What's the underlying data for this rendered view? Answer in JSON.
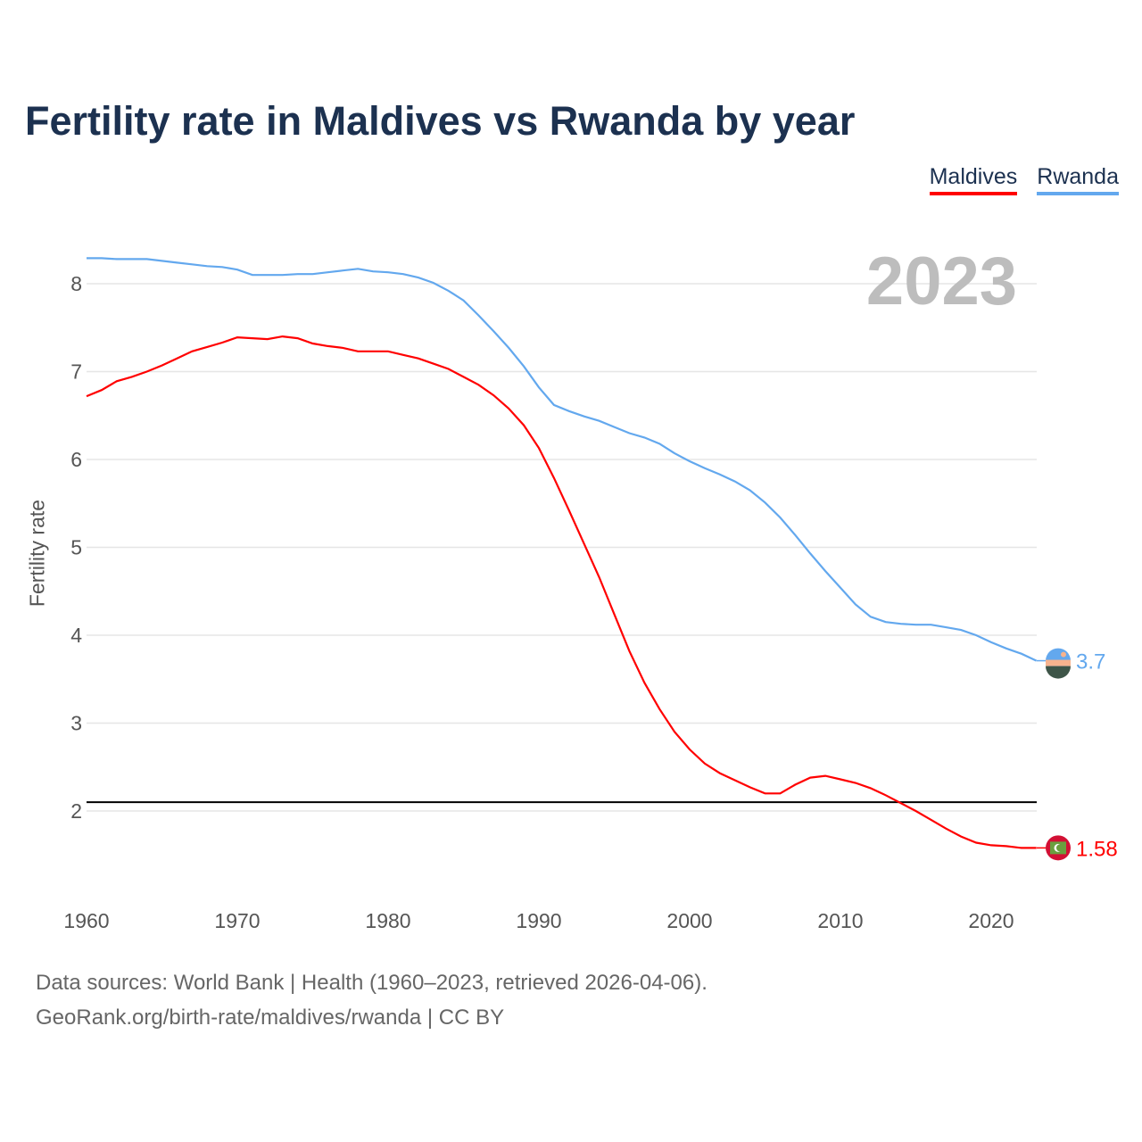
{
  "title": "Fertility rate in Maldives vs Rwanda by year",
  "current_year": "2023",
  "legend": [
    {
      "label": "Maldives",
      "color": "#ff0000"
    },
    {
      "label": "Rwanda",
      "color": "#63a8ee"
    }
  ],
  "footer": {
    "line1": "Data sources: World Bank | Health (1960–2023, retrieved 2026-04-06).",
    "line2": "GeoRank.org/birth-rate/maldives/rwanda | CC BY"
  },
  "chart_data": {
    "type": "line",
    "title": "Fertility rate in Maldives vs Rwanda by year",
    "xlabel": "",
    "ylabel": "Fertility rate",
    "xlim": [
      1960,
      2023
    ],
    "ylim": [
      1.1,
      8.4
    ],
    "xticks": [
      1960,
      1970,
      1980,
      1990,
      2000,
      2010,
      2020
    ],
    "yticks": [
      2,
      3,
      4,
      5,
      6,
      7,
      8
    ],
    "grid": true,
    "legend_position": "top-right",
    "reference_line": 2.1,
    "x_start": 1960,
    "series": [
      {
        "name": "Maldives",
        "color": "#ff0000",
        "end_label": "1.58",
        "values": [
          6.72,
          6.79,
          6.89,
          6.94,
          7.0,
          7.07,
          7.15,
          7.23,
          7.28,
          7.33,
          7.39,
          7.38,
          7.37,
          7.4,
          7.38,
          7.32,
          7.29,
          7.27,
          7.23,
          7.23,
          7.23,
          7.19,
          7.15,
          7.09,
          7.03,
          6.94,
          6.85,
          6.73,
          6.58,
          6.39,
          6.13,
          5.79,
          5.42,
          5.04,
          4.66,
          4.24,
          3.82,
          3.46,
          3.16,
          2.9,
          2.7,
          2.54,
          2.43,
          2.35,
          2.27,
          2.2,
          2.2,
          2.3,
          2.38,
          2.4,
          2.36,
          2.32,
          2.26,
          2.18,
          2.09,
          2.0,
          1.9,
          1.8,
          1.71,
          1.64,
          1.61,
          1.6,
          1.58,
          1.58
        ]
      },
      {
        "name": "Rwanda",
        "color": "#63a8ee",
        "end_label": "3.7",
        "values": [
          8.29,
          8.29,
          8.28,
          8.28,
          8.28,
          8.26,
          8.24,
          8.22,
          8.2,
          8.19,
          8.16,
          8.1,
          8.1,
          8.1,
          8.11,
          8.11,
          8.13,
          8.15,
          8.17,
          8.14,
          8.13,
          8.11,
          8.07,
          8.01,
          7.92,
          7.81,
          7.64,
          7.46,
          7.27,
          7.06,
          6.82,
          6.62,
          6.55,
          6.49,
          6.44,
          6.37,
          6.3,
          6.25,
          6.18,
          6.07,
          5.98,
          5.9,
          5.83,
          5.75,
          5.65,
          5.51,
          5.34,
          5.14,
          4.93,
          4.73,
          4.54,
          4.35,
          4.21,
          4.15,
          4.13,
          4.12,
          4.12,
          4.09,
          4.06,
          4.0,
          3.92,
          3.85,
          3.79,
          3.71
        ]
      }
    ]
  }
}
